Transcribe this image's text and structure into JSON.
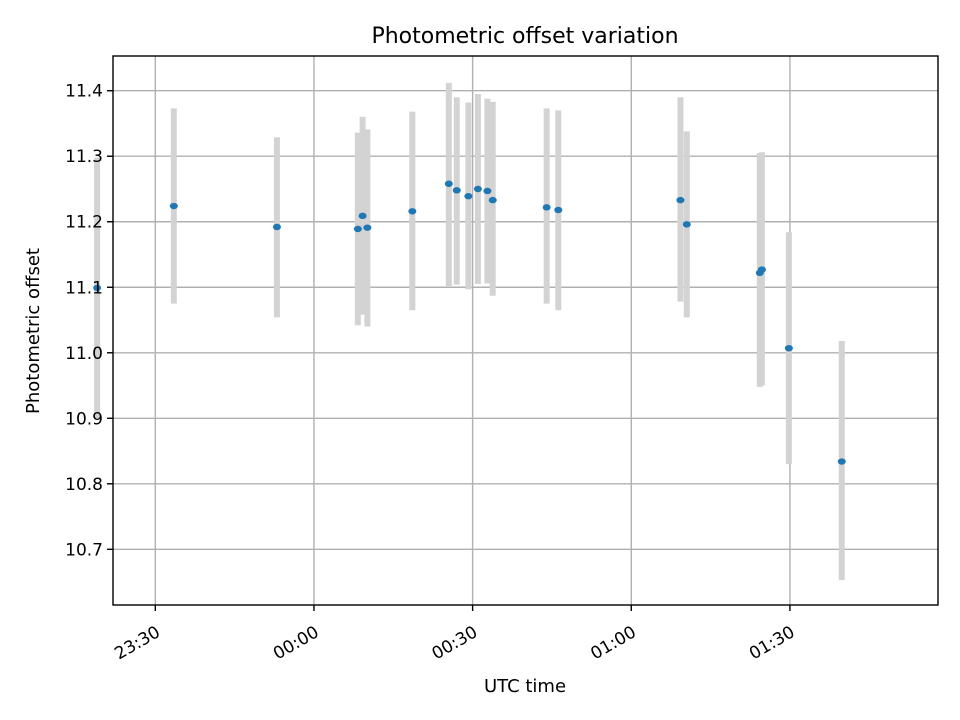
{
  "chart_data": {
    "type": "scatter",
    "title": "Photometric offset variation",
    "xlabel": "UTC time",
    "ylabel": "Photometric offset",
    "x_unit": "minutes relative to 00:00 UTC",
    "xlim": [
      -38,
      118
    ],
    "ylim": [
      10.615,
      11.453
    ],
    "x_ticks": [
      {
        "value": -30,
        "label": "23:30"
      },
      {
        "value": 0,
        "label": "00:00"
      },
      {
        "value": 30,
        "label": "00:30"
      },
      {
        "value": 60,
        "label": "01:00"
      },
      {
        "value": 90,
        "label": "01:30"
      }
    ],
    "y_ticks": [
      {
        "value": 10.7,
        "label": "10.7"
      },
      {
        "value": 10.8,
        "label": "10.8"
      },
      {
        "value": 10.9,
        "label": "10.9"
      },
      {
        "value": 11.0,
        "label": "11.0"
      },
      {
        "value": 11.1,
        "label": "11.1"
      },
      {
        "value": 11.2,
        "label": "11.2"
      },
      {
        "value": 11.3,
        "label": "11.3"
      },
      {
        "value": 11.4,
        "label": "11.4"
      }
    ],
    "grid": true,
    "marker_color": "#1f77b4",
    "errorbar_color": "#d3d3d3",
    "points": [
      {
        "x": -41.0,
        "y": 11.099,
        "ylo": 10.9,
        "yhi": 11.298
      },
      {
        "x": -26.5,
        "y": 11.224,
        "ylo": 11.075,
        "yhi": 11.373
      },
      {
        "x": -7.0,
        "y": 11.192,
        "ylo": 11.054,
        "yhi": 11.329
      },
      {
        "x": 8.3,
        "y": 11.189,
        "ylo": 11.042,
        "yhi": 11.336
      },
      {
        "x": 9.2,
        "y": 11.209,
        "ylo": 11.058,
        "yhi": 11.36
      },
      {
        "x": 10.1,
        "y": 11.191,
        "ylo": 11.04,
        "yhi": 11.341
      },
      {
        "x": 18.6,
        "y": 11.216,
        "ylo": 11.065,
        "yhi": 11.368
      },
      {
        "x": 25.5,
        "y": 11.258,
        "ylo": 11.102,
        "yhi": 11.412
      },
      {
        "x": 27.0,
        "y": 11.248,
        "ylo": 11.104,
        "yhi": 11.39
      },
      {
        "x": 29.2,
        "y": 11.239,
        "ylo": 11.097,
        "yhi": 11.382
      },
      {
        "x": 31.0,
        "y": 11.25,
        "ylo": 11.105,
        "yhi": 11.395
      },
      {
        "x": 32.8,
        "y": 11.247,
        "ylo": 11.106,
        "yhi": 11.388
      },
      {
        "x": 33.8,
        "y": 11.233,
        "ylo": 11.087,
        "yhi": 11.383
      },
      {
        "x": 44.0,
        "y": 11.222,
        "ylo": 11.075,
        "yhi": 11.373
      },
      {
        "x": 46.2,
        "y": 11.218,
        "ylo": 11.065,
        "yhi": 11.37
      },
      {
        "x": 69.3,
        "y": 11.233,
        "ylo": 11.078,
        "yhi": 11.39
      },
      {
        "x": 70.5,
        "y": 11.196,
        "ylo": 11.054,
        "yhi": 11.338
      },
      {
        "x": 84.3,
        "y": 11.122,
        "ylo": 10.948,
        "yhi": 11.305
      },
      {
        "x": 84.7,
        "y": 11.127,
        "ylo": 10.95,
        "yhi": 11.306
      },
      {
        "x": 89.8,
        "y": 11.007,
        "ylo": 10.83,
        "yhi": 11.184
      },
      {
        "x": 99.8,
        "y": 10.834,
        "ylo": 10.653,
        "yhi": 11.018
      }
    ]
  }
}
